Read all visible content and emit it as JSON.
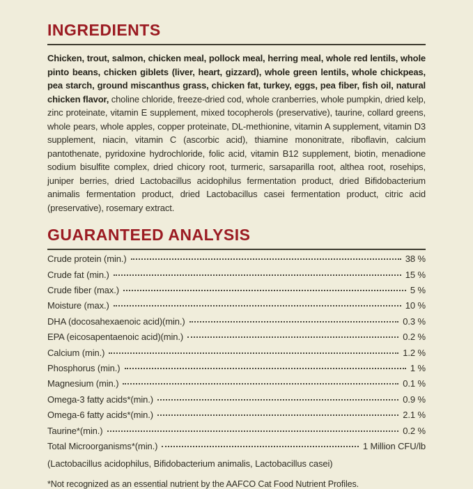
{
  "theme": {
    "colors": {
      "bg": "#F0EDDB",
      "heading": "#9B1B22",
      "text": "#2E2C23",
      "text-bold": "#26241B",
      "rule": "#3B392D"
    }
  },
  "ingredients": {
    "title": "INGREDIENTS",
    "primary": "Chicken, trout, salmon, chicken meal, pollock meal, herring meal, whole red lentils, whole pinto beans, chicken giblets (liver, heart, gizzard), whole green lentils, whole chickpeas, pea starch, ground miscanthus grass, chicken fat, turkey, eggs, pea fiber, fish oil, natural chicken flavor,",
    "secondary": " choline chloride, freeze-dried cod, whole cranberries, whole pumpkin, dried kelp, zinc proteinate, vitamin E supplement, mixed tocopherols (preservative), taurine, collard greens, whole pears, whole apples, copper proteinate, DL-methionine, vitamin A supplement, vitamin D3 supplement, niacin, vitamin C (ascorbic acid), thiamine mononitrate, riboflavin, calcium pantothenate, pyridoxine hydrochloride, folic acid, vitamin B12 supplement, biotin, menadione sodium bisulfite complex, dried chicory root, turmeric, sarsaparilla root, althea root, rosehips, juniper berries, dried Lactobacillus acidophilus fermentation product, dried Bifidobacterium animalis fermentation product, dried Lactobacillus casei fermentation product, citric acid (preservative), rosemary extract."
  },
  "guaranteed_analysis": {
    "title": "GUARANTEED ANALYSIS",
    "rows": [
      {
        "label": "Crude protein (min.)",
        "value": "38 %"
      },
      {
        "label": "Crude fat (min.)",
        "value": "15 %"
      },
      {
        "label": "Crude fiber (max.)",
        "value": "5 %"
      },
      {
        "label": "Moisture (max.)",
        "value": "10 %"
      },
      {
        "label": "DHA (docosahexaenoic acid)(min.)",
        "value": "0.3 %"
      },
      {
        "label": "EPA (eicosapentaenoic acid)(min.)",
        "value": "0.2 %"
      },
      {
        "label": "Calcium (min.)",
        "value": "1.2 %"
      },
      {
        "label": "Phosphorus (min.)",
        "value": "1 %"
      },
      {
        "label": "Magnesium (min.)",
        "value": "0.1 %"
      },
      {
        "label": "Omega-3 fatty acids*(min.)",
        "value": "0.9 %"
      },
      {
        "label": "Omega-6 fatty acids*(min.)",
        "value": "2.1 %"
      },
      {
        "label": "Taurine*(min.)",
        "value": "0.2 %"
      },
      {
        "label": "Total Microorganisms*(min.)",
        "value": "1 Million CFU/lb"
      }
    ],
    "microorganisms_note": "(Lactobacillus acidophilus, Bifidobacterium animalis, Lactobacillus casei)",
    "footnote": "*Not recognized as an essential nutrient by the AAFCO Cat Food Nutrient Profiles."
  }
}
